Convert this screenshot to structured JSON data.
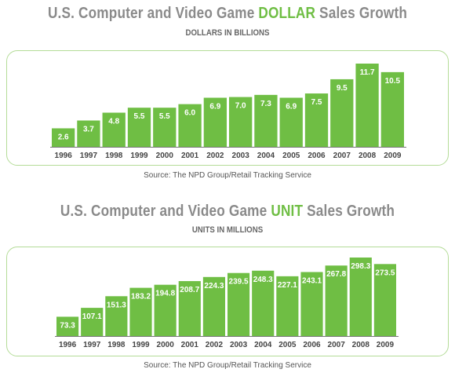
{
  "chart_data": [
    {
      "type": "bar",
      "title_prefix": "U.S. Computer and Video Game ",
      "title_highlight": "DOLLAR",
      "title_suffix": " Sales Growth",
      "subtitle": "DOLLARS IN BILLIONS",
      "source": "Source: The NPD Group/Retail Tracking Service",
      "categories": [
        "1996",
        "1997",
        "1998",
        "1999",
        "2000",
        "2001",
        "2002",
        "2003",
        "2004",
        "2005",
        "2006",
        "2007",
        "2008",
        "2009"
      ],
      "values": [
        2.6,
        3.7,
        4.8,
        5.5,
        5.5,
        6.0,
        6.9,
        7.0,
        7.3,
        6.9,
        7.5,
        9.5,
        11.7,
        10.5
      ],
      "value_labels": [
        "2.6",
        "3.7",
        "4.8",
        "5.5",
        "5.5",
        "6.0",
        "6.9",
        "7.0",
        "7.3",
        "6.9",
        "7.5",
        "9.5",
        "11.7",
        "10.5"
      ],
      "color": "#6fbe44",
      "xlabel": "",
      "ylabel": ""
    },
    {
      "type": "bar",
      "title_prefix": "U.S. Computer and Video Game ",
      "title_highlight": "UNIT",
      "title_suffix": " Sales Growth",
      "subtitle": "UNITS IN MILLIONS",
      "source": "Source: The NPD Group/Retail Tracking Service",
      "categories": [
        "1996",
        "1997",
        "1998",
        "1999",
        "2000",
        "2001",
        "2002",
        "2003",
        "2004",
        "2005",
        "2006",
        "2007",
        "2008",
        "2009"
      ],
      "values": [
        73.3,
        107.1,
        151.3,
        183.2,
        194.8,
        208.7,
        224.3,
        239.5,
        248.3,
        227.1,
        243.1,
        267.8,
        298.3,
        273.5
      ],
      "value_labels": [
        "73.3",
        "107.1",
        "151.3",
        "183.2",
        "194.8",
        "208.7",
        "224.3",
        "239.5",
        "248.3",
        "227.1",
        "243.1",
        "267.8",
        "298.3",
        "273.5"
      ],
      "color": "#6fbe44",
      "xlabel": "",
      "ylabel": ""
    }
  ]
}
